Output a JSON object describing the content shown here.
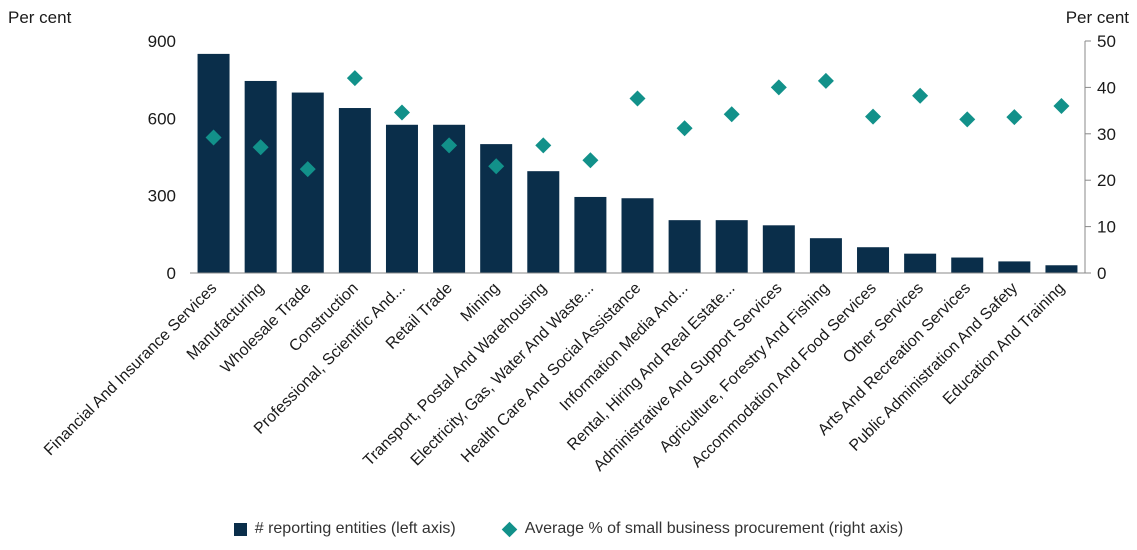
{
  "chart_data": {
    "type": "bar+scatter",
    "left_axis": {
      "title": "Per cent",
      "ylim": [
        0,
        900
      ],
      "ticks": [
        0,
        300,
        600,
        900
      ]
    },
    "right_axis": {
      "title": "Per cent",
      "ylim": [
        0,
        50
      ],
      "ticks": [
        0,
        10,
        20,
        30,
        40,
        50
      ]
    },
    "categories": [
      "Financial And Insurance Services",
      "Manufacturing",
      "Wholesale Trade",
      "Construction",
      "Professional, Scientific And...",
      "Retail Trade",
      "Mining",
      "Transport, Postal And Warehousing",
      "Electricity, Gas, Water And Waste...",
      "Health Care And Social Assistance",
      "Information Media And...",
      "Rental, Hiring And Real Estate...",
      "Administrative And Support Services",
      "Agriculture, Forestry And Fishing",
      "Accommodation And Food Services",
      "Other Services",
      "Arts And Recreation Services",
      "Public Administration And Safety",
      "Education And Training"
    ],
    "series": [
      {
        "name": "# reporting entities (left axis)",
        "type": "bar",
        "axis": "left",
        "color": "#0a2e4a",
        "values": [
          850,
          745,
          700,
          640,
          575,
          575,
          500,
          395,
          295,
          290,
          205,
          205,
          185,
          135,
          100,
          75,
          60,
          45,
          30
        ]
      },
      {
        "name": "Average % of small business procurement (right axis)",
        "type": "scatter",
        "marker": "diamond",
        "axis": "right",
        "color": "#12918a",
        "values": [
          29.2,
          27.1,
          22.4,
          42.0,
          34.6,
          27.5,
          23.0,
          27.5,
          24.3,
          37.6,
          31.2,
          34.2,
          40.0,
          41.4,
          33.7,
          38.2,
          33.1,
          33.6,
          36.0
        ]
      }
    ],
    "grid": false,
    "legend_position": "bottom"
  }
}
